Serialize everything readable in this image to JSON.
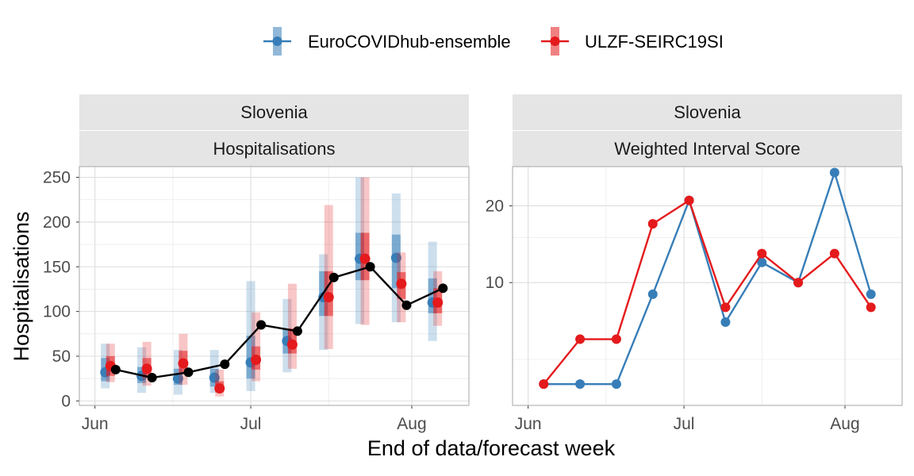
{
  "legend": {
    "items": [
      {
        "name": "EuroCOVIDhub-ensemble",
        "color": "#377EB8"
      },
      {
        "name": "ULZF-SEIRC19SI",
        "color": "#E41A1C"
      }
    ],
    "position": "top"
  },
  "xlabel": "End of data/forecast week",
  "chart_data": [
    {
      "type": "line",
      "panel": "left",
      "strip_top": "Slovenia",
      "strip_bottom": "Hospitalisations",
      "ylabel": "Hospitalisations",
      "xlabel": "End of data/forecast week",
      "x_ticks": [
        "Jun",
        "Jul",
        "Aug"
      ],
      "x_tick_dates": [
        "2021-06-01",
        "2021-07-01",
        "2021-08-01"
      ],
      "xlim": [
        "2021-05-29",
        "2021-08-12"
      ],
      "ylim": [
        -5,
        262
      ],
      "y_ticks": [
        0,
        50,
        100,
        150,
        200,
        250
      ],
      "grid": true,
      "observed": {
        "color": "#000000",
        "x": [
          "2021-06-05",
          "2021-06-12",
          "2021-06-19",
          "2021-06-26",
          "2021-07-03",
          "2021-07-10",
          "2021-07-17",
          "2021-07-24",
          "2021-07-31",
          "2021-08-07"
        ],
        "y": [
          35,
          26,
          32,
          41,
          85,
          78,
          138,
          150,
          107,
          126
        ]
      },
      "series": [
        {
          "name": "EuroCOVIDhub-ensemble",
          "color": "#377EB8",
          "x": [
            "2021-06-03",
            "2021-06-10",
            "2021-06-17",
            "2021-06-24",
            "2021-07-01",
            "2021-07-08",
            "2021-07-15",
            "2021-07-22",
            "2021-07-29",
            "2021-08-05"
          ],
          "median": [
            32,
            28,
            25,
            26,
            43,
            67,
            116,
            159,
            160,
            110
          ],
          "inner": [
            [
              22,
              48
            ],
            [
              20,
              38
            ],
            [
              18,
              36
            ],
            [
              16,
              36
            ],
            [
              25,
              73
            ],
            [
              53,
              80
            ],
            [
              95,
              145
            ],
            [
              135,
              188
            ],
            [
              126,
              186
            ],
            [
              98,
              137
            ]
          ],
          "outer": [
            [
              14,
              64
            ],
            [
              9,
              60
            ],
            [
              7,
              57
            ],
            [
              9,
              57
            ],
            [
              11,
              134
            ],
            [
              32,
              114
            ],
            [
              57,
              164
            ],
            [
              86,
              250
            ],
            [
              88,
              232
            ],
            [
              67,
              178
            ]
          ]
        },
        {
          "name": "ULZF-SEIRC19SI",
          "color": "#E41A1C",
          "x": [
            "2021-06-04",
            "2021-06-11",
            "2021-06-18",
            "2021-06-25",
            "2021-07-02",
            "2021-07-09",
            "2021-07-16",
            "2021-07-23",
            "2021-07-30",
            "2021-08-06"
          ],
          "median": [
            39,
            36,
            42,
            14,
            46,
            63,
            116,
            159,
            131,
            110
          ],
          "inner": [
            [
              28,
              50
            ],
            [
              26,
              48
            ],
            [
              30,
              56
            ],
            [
              10,
              22
            ],
            [
              35,
              61
            ],
            [
              53,
              81
            ],
            [
              95,
              145
            ],
            [
              135,
              188
            ],
            [
              114,
              144
            ],
            [
              98,
              126
            ]
          ],
          "outer": [
            [
              21,
              64
            ],
            [
              17,
              66
            ],
            [
              18,
              75
            ],
            [
              5,
              35
            ],
            [
              22,
              99
            ],
            [
              36,
              131
            ],
            [
              58,
              219
            ],
            [
              85,
              250
            ],
            [
              88,
              166
            ],
            [
              84,
              145
            ]
          ]
        }
      ]
    },
    {
      "type": "line",
      "panel": "right",
      "strip_top": "Slovenia",
      "strip_bottom": "Weighted Interval Score",
      "xlabel": "End of data/forecast week",
      "x_ticks": [
        "Jun",
        "Jul",
        "Aug"
      ],
      "x_tick_dates": [
        "2021-06-01",
        "2021-07-01",
        "2021-08-01"
      ],
      "xlim": [
        "2021-05-29",
        "2021-08-12"
      ],
      "y_scale": "log",
      "ylim": [
        3.3,
        28.5
      ],
      "y_ticks": [
        10,
        20
      ],
      "grid": true,
      "series": [
        {
          "name": "EuroCOVIDhub-ensemble",
          "color": "#377EB8",
          "x": [
            "2021-06-04",
            "2021-06-11",
            "2021-06-18",
            "2021-06-25",
            "2021-07-02",
            "2021-07-09",
            "2021-07-16",
            "2021-07-23",
            "2021-07-30",
            "2021-08-06"
          ],
          "y": [
            4,
            4,
            4,
            9,
            21,
            7,
            12,
            10,
            27,
            9
          ]
        },
        {
          "name": "ULZF-SEIRC19SI",
          "color": "#E41A1C",
          "x": [
            "2021-06-04",
            "2021-06-11",
            "2021-06-18",
            "2021-06-25",
            "2021-07-02",
            "2021-07-09",
            "2021-07-16",
            "2021-07-23",
            "2021-07-30",
            "2021-08-06"
          ],
          "y": [
            4,
            6,
            6,
            17,
            21,
            8,
            13,
            10,
            13,
            8
          ]
        }
      ]
    }
  ]
}
